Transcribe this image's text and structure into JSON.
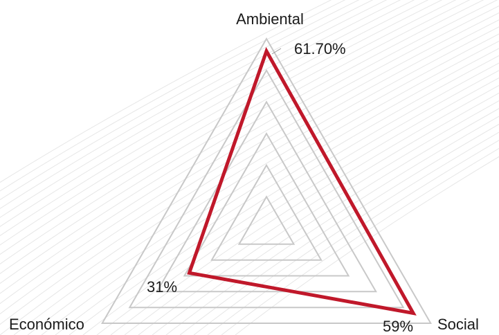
{
  "chart_data": {
    "type": "radar",
    "axes": [
      "Ambiental",
      "Social",
      "Económico"
    ],
    "series": [
      {
        "values": [
          61.7,
          59,
          31
        ]
      }
    ],
    "data_labels": [
      "61.70%",
      "59%",
      "31%"
    ],
    "rmax": 66,
    "grid_levels": 6,
    "grid": true,
    "colors": {
      "series": "#c0182a",
      "grid": "#c8c8c8",
      "background_lines": "#e6e6e6",
      "text": "#1a1a1a"
    }
  }
}
